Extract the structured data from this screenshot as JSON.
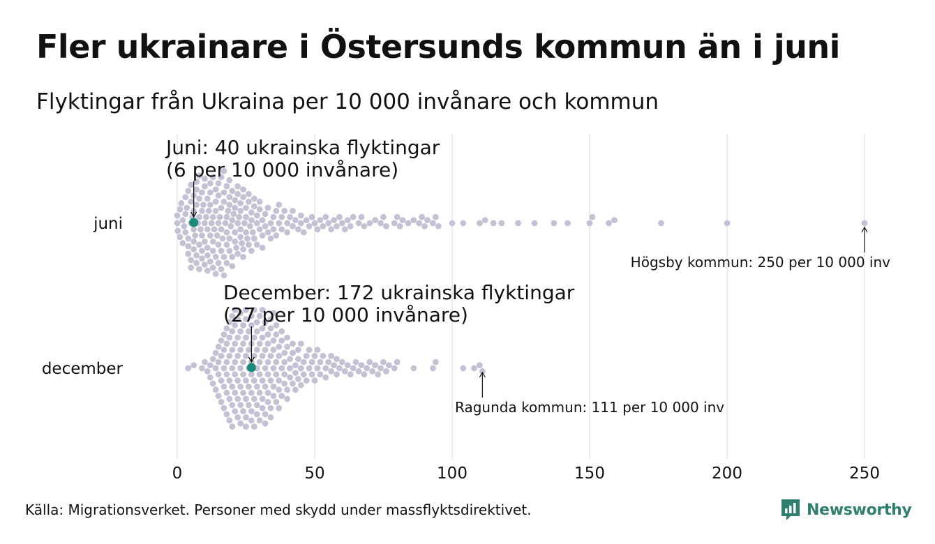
{
  "title": "Fler ukrainare i Östersunds kommun än i juni",
  "subtitle": "Flyktingar från Ukraina per 10 000 invånare och kommun",
  "source": "Källa: Migrationsverket. Personer med skydd under massflyktsdirektivet.",
  "logo_text": "Newsworthy",
  "colors": {
    "dot": "#c3c2d4",
    "highlight": "#1a8a7a",
    "grid": "#d9d9d9",
    "logo": "#2f7f6f",
    "text": "#111111"
  },
  "chart_data": {
    "type": "scatter",
    "subtype": "beeswarm",
    "xlim": [
      0,
      260
    ],
    "xticks": [
      0,
      50,
      100,
      150,
      200,
      250
    ],
    "categories": [
      "juni",
      "december"
    ],
    "grid": true,
    "series": [
      {
        "name": "juni",
        "highlight": {
          "value": 6,
          "label_line1": "Juni:  40 ukrainska flyktingar",
          "label_line2": "(6 per 10 000 invånare)"
        },
        "extreme": {
          "value": 250,
          "label": "Högsby kommun: 250 per 10 000 inv"
        },
        "values": [
          0,
          0,
          0.2,
          1,
          1,
          1.5,
          2,
          2,
          2.5,
          3,
          3,
          3,
          3.5,
          4,
          4,
          4,
          4,
          5,
          5,
          5,
          5,
          5,
          5.5,
          6,
          6,
          6,
          6,
          6,
          6.5,
          7,
          7,
          7,
          7,
          7,
          7.5,
          8,
          8,
          8,
          8,
          8,
          8.5,
          9,
          9,
          9,
          9,
          9,
          9.5,
          10,
          10,
          10,
          10,
          10,
          10.5,
          11,
          11,
          11,
          11,
          11,
          11.5,
          12,
          12,
          12,
          12,
          12,
          12.5,
          13,
          13,
          13,
          13,
          13,
          13.5,
          14,
          14,
          14,
          14,
          14,
          14.5,
          15,
          15,
          15,
          15,
          15,
          15.5,
          16,
          16,
          16,
          16,
          16,
          16.5,
          17,
          17,
          17,
          17,
          17,
          17.5,
          18,
          18,
          18,
          18,
          18,
          18.5,
          19,
          19,
          19,
          19,
          19,
          19.5,
          20,
          20,
          20,
          20,
          20.5,
          21,
          21,
          21,
          21,
          21.5,
          22,
          22,
          22,
          22,
          22.5,
          23,
          23,
          23,
          23,
          23.5,
          24,
          24,
          24,
          24,
          24.5,
          25,
          25,
          25,
          25.5,
          26,
          26,
          26,
          26.5,
          27,
          27,
          27,
          27.5,
          28,
          28,
          28,
          29,
          29,
          29,
          30,
          30,
          30,
          31,
          31,
          31,
          32,
          32,
          33,
          33,
          34,
          34,
          35,
          35,
          36,
          36,
          37,
          37,
          38,
          38,
          39,
          40,
          40,
          41,
          42,
          42,
          43,
          44,
          45,
          45,
          46,
          47,
          48,
          49,
          50,
          51,
          52,
          53,
          54,
          55,
          56,
          57,
          58,
          59,
          60,
          61,
          62,
          63,
          64,
          66,
          67,
          68,
          70,
          72,
          74,
          75,
          76,
          79,
          80,
          81,
          82,
          84,
          86,
          88,
          89,
          90,
          91,
          93,
          94,
          95,
          100,
          104,
          110,
          112,
          115,
          118,
          124,
          130,
          137,
          142,
          150,
          151,
          157,
          159,
          176,
          200,
          250
        ]
      },
      {
        "name": "december",
        "highlight": {
          "value": 27,
          "label_line1": "December: 172 ukrainska flyktingar",
          "label_line2": "(27 per 10 000 invånare)"
        },
        "extreme": {
          "value": 111,
          "label": "Ragunda kommun: 111 per 10 000 inv"
        },
        "values": [
          4,
          6,
          9,
          10,
          11,
          12,
          12,
          13,
          13,
          14,
          14,
          14,
          15,
          15,
          15,
          15,
          16,
          16,
          16,
          16,
          17,
          17,
          17,
          17,
          17,
          18,
          18,
          18,
          18,
          18,
          18,
          19,
          19,
          19,
          19,
          19,
          19,
          20,
          20,
          20,
          20,
          20,
          20,
          20,
          21,
          21,
          21,
          21,
          21,
          21,
          21,
          22,
          22,
          22,
          22,
          22,
          22,
          22,
          22,
          23,
          23,
          23,
          23,
          23,
          23,
          23,
          23,
          24,
          24,
          24,
          24,
          24,
          24,
          24,
          24,
          25,
          25,
          25,
          25,
          25,
          25,
          25,
          25,
          25,
          26,
          26,
          26,
          26,
          26,
          26,
          26,
          26,
          27,
          27,
          27,
          27,
          27,
          27,
          27,
          27,
          28,
          28,
          28,
          28,
          28,
          28,
          28,
          28,
          29,
          29,
          29,
          29,
          29,
          29,
          29,
          29,
          30,
          30,
          30,
          30,
          30,
          30,
          30,
          31,
          31,
          31,
          31,
          31,
          31,
          31,
          32,
          32,
          32,
          32,
          32,
          32,
          32,
          33,
          33,
          33,
          33,
          33,
          33,
          34,
          34,
          34,
          34,
          34,
          34,
          35,
          35,
          35,
          35,
          35,
          35,
          36,
          36,
          36,
          36,
          36,
          37,
          37,
          37,
          37,
          37,
          38,
          38,
          38,
          38,
          39,
          39,
          39,
          39,
          40,
          40,
          40,
          40,
          41,
          41,
          41,
          42,
          42,
          42,
          43,
          43,
          43,
          44,
          44,
          44,
          45,
          45,
          45,
          46,
          46,
          47,
          47,
          48,
          48,
          49,
          49,
          50,
          50,
          51,
          51,
          52,
          52,
          53,
          54,
          54,
          55,
          56,
          56,
          57,
          58,
          58,
          59,
          60,
          61,
          62,
          63,
          64,
          65,
          66,
          67,
          68,
          69,
          70,
          71,
          72,
          73,
          74,
          75,
          76,
          77,
          79,
          80,
          86,
          93,
          94,
          104,
          108,
          110,
          111
        ]
      }
    ]
  }
}
